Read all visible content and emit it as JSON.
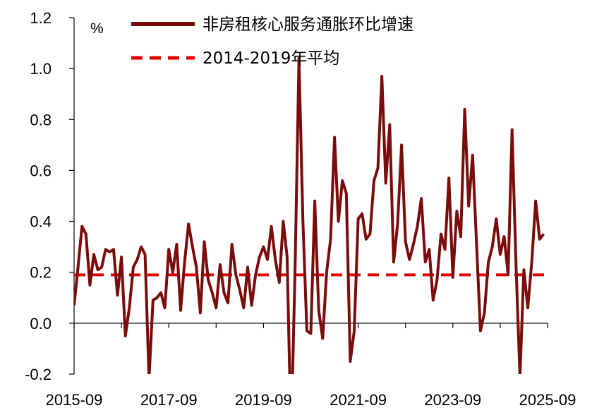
{
  "chart_data": {
    "type": "line",
    "unit_label": "%",
    "ylim": [
      -0.2,
      1.2
    ],
    "yticks": [
      "-0.2",
      "0.0",
      "0.2",
      "0.4",
      "0.6",
      "0.8",
      "1.0",
      "1.2"
    ],
    "x_tick_labels": [
      "2015-09",
      "2017-09",
      "2019-09",
      "2021-09",
      "2023-09",
      "2025-09"
    ],
    "x_start": "2015-09",
    "x_end": "2025-09",
    "legend_position": "top-center",
    "grid": false,
    "series": [
      {
        "name": "非房租核心服务通胀环比增速",
        "color": "#7b0c0c",
        "style": "solid",
        "points": [
          [
            "2015-09",
            0.07
          ],
          [
            "2015-10",
            0.22
          ],
          [
            "2015-11",
            0.38
          ],
          [
            "2015-12",
            0.35
          ],
          [
            "2016-01",
            0.15
          ],
          [
            "2016-02",
            0.27
          ],
          [
            "2016-03",
            0.21
          ],
          [
            "2016-04",
            0.22
          ],
          [
            "2016-05",
            0.29
          ],
          [
            "2016-06",
            0.28
          ],
          [
            "2016-07",
            0.29
          ],
          [
            "2016-08",
            0.11
          ],
          [
            "2016-09",
            0.26
          ],
          [
            "2016-10",
            -0.05
          ],
          [
            "2016-11",
            0.06
          ],
          [
            "2016-12",
            0.22
          ],
          [
            "2017-01",
            0.25
          ],
          [
            "2017-02",
            0.3
          ],
          [
            "2017-03",
            0.27
          ],
          [
            "2017-04",
            -0.22
          ],
          [
            "2017-05",
            0.09
          ],
          [
            "2017-06",
            0.1
          ],
          [
            "2017-07",
            0.12
          ],
          [
            "2017-08",
            0.06
          ],
          [
            "2017-09",
            0.29
          ],
          [
            "2017-10",
            0.2
          ],
          [
            "2017-11",
            0.31
          ],
          [
            "2017-12",
            0.05
          ],
          [
            "2018-01",
            0.24
          ],
          [
            "2018-02",
            0.39
          ],
          [
            "2018-03",
            0.3
          ],
          [
            "2018-04",
            0.22
          ],
          [
            "2018-05",
            0.04
          ],
          [
            "2018-06",
            0.32
          ],
          [
            "2018-07",
            0.17
          ],
          [
            "2018-08",
            0.12
          ],
          [
            "2018-09",
            0.06
          ],
          [
            "2018-10",
            0.23
          ],
          [
            "2018-11",
            0.12
          ],
          [
            "2018-12",
            0.08
          ],
          [
            "2019-01",
            0.31
          ],
          [
            "2019-02",
            0.19
          ],
          [
            "2019-03",
            0.13
          ],
          [
            "2019-04",
            0.06
          ],
          [
            "2019-05",
            0.22
          ],
          [
            "2019-06",
            0.07
          ],
          [
            "2019-07",
            0.19
          ],
          [
            "2019-08",
            0.26
          ],
          [
            "2019-09",
            0.3
          ],
          [
            "2019-10",
            0.25
          ],
          [
            "2019-11",
            0.38
          ],
          [
            "2019-12",
            0.25
          ],
          [
            "2020-01",
            0.16
          ],
          [
            "2020-02",
            0.4
          ],
          [
            "2020-03",
            0.26
          ],
          [
            "2020-04",
            -0.45
          ],
          [
            "2020-05",
            0.2
          ],
          [
            "2020-06",
            1.04
          ],
          [
            "2020-07",
            0.4
          ],
          [
            "2020-08",
            -0.03
          ],
          [
            "2020-09",
            -0.04
          ],
          [
            "2020-10",
            0.48
          ],
          [
            "2020-11",
            0.05
          ],
          [
            "2020-12",
            -0.06
          ],
          [
            "2021-01",
            0.2
          ],
          [
            "2021-02",
            0.33
          ],
          [
            "2021-03",
            0.73
          ],
          [
            "2021-04",
            0.4
          ],
          [
            "2021-05",
            0.56
          ],
          [
            "2021-06",
            0.51
          ],
          [
            "2021-07",
            -0.15
          ],
          [
            "2021-08",
            -0.03
          ],
          [
            "2021-09",
            0.41
          ],
          [
            "2021-10",
            0.43
          ],
          [
            "2021-11",
            0.33
          ],
          [
            "2021-12",
            0.35
          ],
          [
            "2022-01",
            0.56
          ],
          [
            "2022-02",
            0.61
          ],
          [
            "2022-03",
            0.97
          ],
          [
            "2022-04",
            0.55
          ],
          [
            "2022-05",
            0.78
          ],
          [
            "2022-06",
            0.24
          ],
          [
            "2022-07",
            0.39
          ],
          [
            "2022-08",
            0.7
          ],
          [
            "2022-09",
            0.32
          ],
          [
            "2022-10",
            0.25
          ],
          [
            "2022-11",
            0.31
          ],
          [
            "2022-12",
            0.38
          ],
          [
            "2023-01",
            0.49
          ],
          [
            "2023-02",
            0.24
          ],
          [
            "2023-03",
            0.29
          ],
          [
            "2023-04",
            0.09
          ],
          [
            "2023-05",
            0.17
          ],
          [
            "2023-06",
            0.35
          ],
          [
            "2023-07",
            0.29
          ],
          [
            "2023-08",
            0.57
          ],
          [
            "2023-09",
            0.18
          ],
          [
            "2023-10",
            0.44
          ],
          [
            "2023-11",
            0.34
          ],
          [
            "2023-12",
            0.84
          ],
          [
            "2024-01",
            0.46
          ],
          [
            "2024-02",
            0.66
          ],
          [
            "2024-03",
            0.31
          ],
          [
            "2024-04",
            -0.03
          ],
          [
            "2024-05",
            0.04
          ],
          [
            "2024-06",
            0.24
          ],
          [
            "2024-07",
            0.3
          ],
          [
            "2024-08",
            0.41
          ],
          [
            "2024-09",
            0.27
          ],
          [
            "2024-10",
            0.34
          ],
          [
            "2024-11",
            0.19
          ],
          [
            "2024-12",
            0.76
          ],
          [
            "2025-01",
            0.23
          ],
          [
            "2025-02",
            -0.21
          ],
          [
            "2025-03",
            0.21
          ],
          [
            "2025-04",
            0.06
          ],
          [
            "2025-05",
            0.24
          ],
          [
            "2025-06",
            0.48
          ],
          [
            "2025-07",
            0.33
          ],
          [
            "2025-08",
            0.35
          ]
        ]
      },
      {
        "name": "2014-2019年平均",
        "color": "#e00000",
        "style": "dashed",
        "value": 0.19
      }
    ]
  }
}
